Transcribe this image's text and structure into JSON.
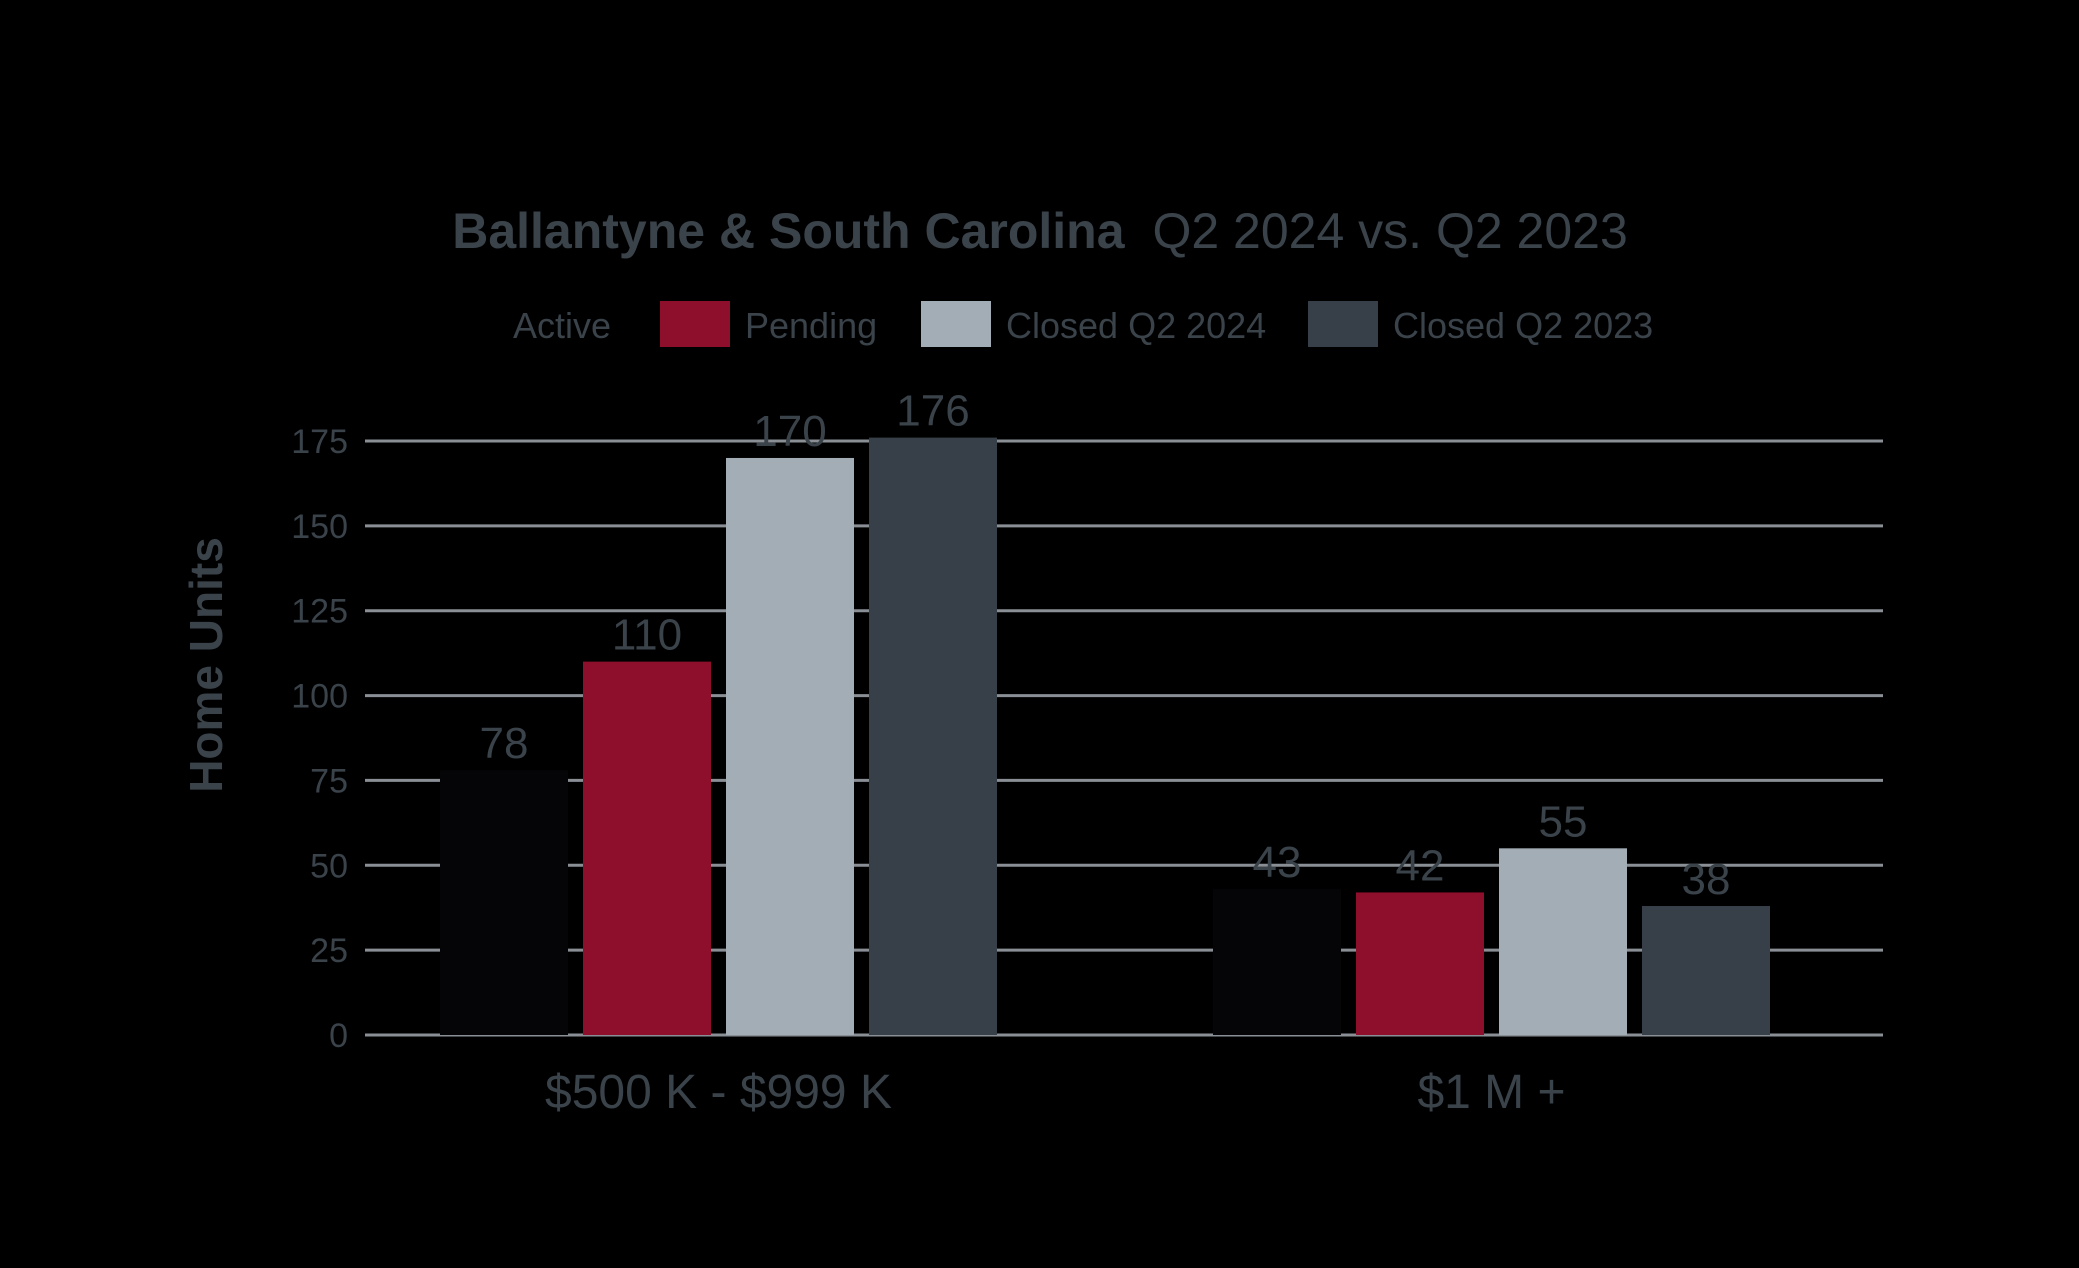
{
  "chart_data": {
    "type": "bar",
    "title_bold": "Ballantyne & South Carolina",
    "title_regular": "Q2 2024 vs. Q2 2023",
    "ylabel": "Home Units",
    "xlabel": "",
    "ylim": [
      0,
      175
    ],
    "yticks": [
      0,
      25,
      50,
      75,
      100,
      125,
      150,
      175
    ],
    "grid": true,
    "legend_position": "top-center",
    "categories": [
      "$500 K - $999 K",
      "$1 M +"
    ],
    "series": [
      {
        "name": "Active",
        "color": "#050508",
        "values": [
          78,
          43
        ]
      },
      {
        "name": "Pending",
        "color": "#8e0f2c",
        "values": [
          110,
          42
        ]
      },
      {
        "name": "Closed Q2 2024",
        "color": "#a2adb5",
        "values": [
          170,
          55
        ]
      },
      {
        "name": "Closed Q2 2023",
        "color": "#374049",
        "values": [
          176,
          38
        ]
      }
    ],
    "text_color": "#3a424a",
    "grid_color": "#8a8f96",
    "background": "#000000"
  }
}
